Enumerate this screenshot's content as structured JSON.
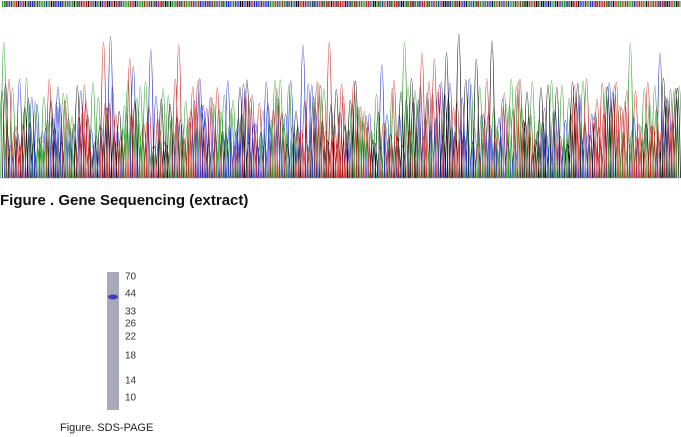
{
  "figure1": {
    "caption": "Figure . Gene Sequencing (extract)"
  },
  "figure2": {
    "markers": [
      "70",
      "44",
      "33",
      "26",
      "22",
      "18",
      "14",
      "10"
    ],
    "caption": "Figure. SDS-PAGE"
  }
}
